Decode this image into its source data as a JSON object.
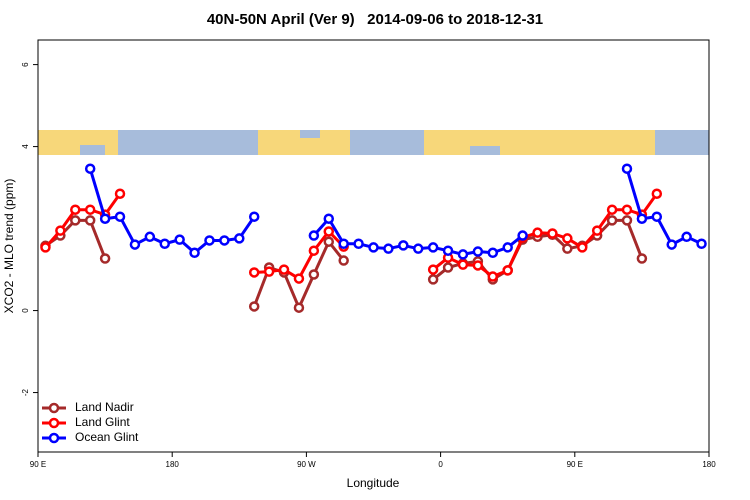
{
  "chart_data": {
    "type": "line",
    "title": "40N-50N April (Ver 9)   2014-09-06 to 2018-12-31",
    "x_label": "Longitude",
    "y_label": "XCO2 - MLO trend (ppm)",
    "x": [
      95,
      105,
      115,
      125,
      135,
      145,
      155,
      165,
      175,
      185,
      195,
      205,
      215,
      225,
      235,
      245,
      255,
      265,
      275,
      285,
      295,
      305,
      315,
      325,
      335,
      345,
      355,
      365,
      375,
      385,
      395,
      405,
      415,
      425,
      435,
      445,
      455,
      465,
      475,
      485,
      495,
      505,
      515,
      525,
      535
    ],
    "series": [
      {
        "name": "Land Nadir",
        "color": "#a52a2a",
        "values": [
          1.58,
          1.83,
          2.2,
          2.2,
          1.27,
          null,
          null,
          null,
          null,
          null,
          null,
          null,
          null,
          null,
          0.1,
          1.05,
          0.93,
          0.07,
          0.88,
          1.68,
          1.22,
          null,
          null,
          null,
          null,
          null,
          0.76,
          1.05,
          1.15,
          1.2,
          0.76,
          0.98,
          1.73,
          1.8,
          1.85,
          1.51,
          1.58,
          1.83,
          2.2,
          2.2,
          1.27,
          null,
          null,
          null,
          null
        ]
      },
      {
        "name": "Land Glint",
        "color": "#ff0000",
        "values": [
          1.54,
          1.95,
          2.46,
          2.46,
          2.34,
          2.85,
          null,
          null,
          null,
          null,
          null,
          null,
          null,
          null,
          0.93,
          0.95,
          1.0,
          0.78,
          1.46,
          1.93,
          1.56,
          null,
          null,
          null,
          null,
          null,
          1.0,
          1.29,
          1.12,
          1.1,
          0.83,
          0.98,
          1.78,
          1.9,
          1.88,
          1.76,
          1.54,
          1.95,
          2.46,
          2.46,
          2.34,
          2.85,
          null,
          null,
          null
        ]
      },
      {
        "name": "Ocean Glint",
        "color": "#0000ff",
        "values": [
          null,
          null,
          null,
          3.46,
          2.24,
          2.29,
          1.61,
          1.8,
          1.63,
          1.73,
          1.41,
          1.71,
          1.71,
          1.76,
          2.29,
          null,
          null,
          null,
          1.83,
          2.24,
          1.63,
          1.63,
          1.54,
          1.51,
          1.59,
          1.51,
          1.54,
          1.46,
          1.37,
          1.44,
          1.41,
          1.54,
          1.83,
          null,
          null,
          null,
          null,
          null,
          null,
          3.46,
          2.24,
          2.29,
          1.61,
          1.8,
          1.63
        ]
      }
    ],
    "xlim": [
      90,
      540
    ],
    "xticks": [
      {
        "value": 90,
        "label": "90 E"
      },
      180,
      {
        "value": 270,
        "label": "90 W"
      },
      {
        "value": 360,
        "label": "0"
      },
      {
        "value": 450,
        "label": "90 E"
      },
      {
        "value": 540,
        "label": "180"
      }
    ],
    "ylim": [
      -3.45,
      6.6
    ],
    "yticks": [
      -2,
      0,
      4,
      6
    ],
    "legend": "bottom-left"
  }
}
